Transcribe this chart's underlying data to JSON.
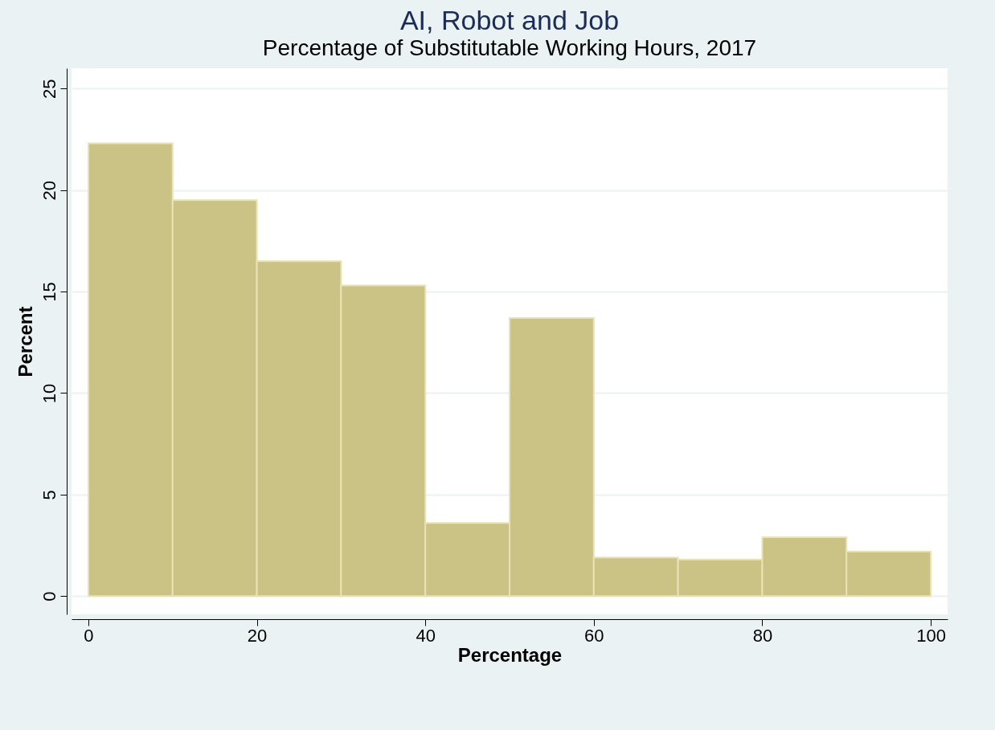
{
  "chart_data": {
    "type": "histogram",
    "title": "AI, Robot and Job",
    "subtitle": "Percentage of Substitutable Working Hours, 2017",
    "xlabel": "Percentage",
    "ylabel": "Percent",
    "bins": [
      0,
      10,
      20,
      30,
      40,
      50,
      60,
      70,
      80,
      90,
      100
    ],
    "values": [
      22.3,
      19.5,
      16.5,
      15.3,
      3.6,
      13.7,
      1.9,
      1.8,
      2.9,
      2.2
    ],
    "color": "#cbc385",
    "xlim": [
      -2,
      102
    ],
    "xticks": [
      0,
      20,
      40,
      60,
      80,
      100
    ],
    "ylim": [
      -0.9,
      26
    ],
    "yticks": [
      0,
      5,
      10,
      15,
      20,
      25
    ],
    "grid": "y"
  }
}
